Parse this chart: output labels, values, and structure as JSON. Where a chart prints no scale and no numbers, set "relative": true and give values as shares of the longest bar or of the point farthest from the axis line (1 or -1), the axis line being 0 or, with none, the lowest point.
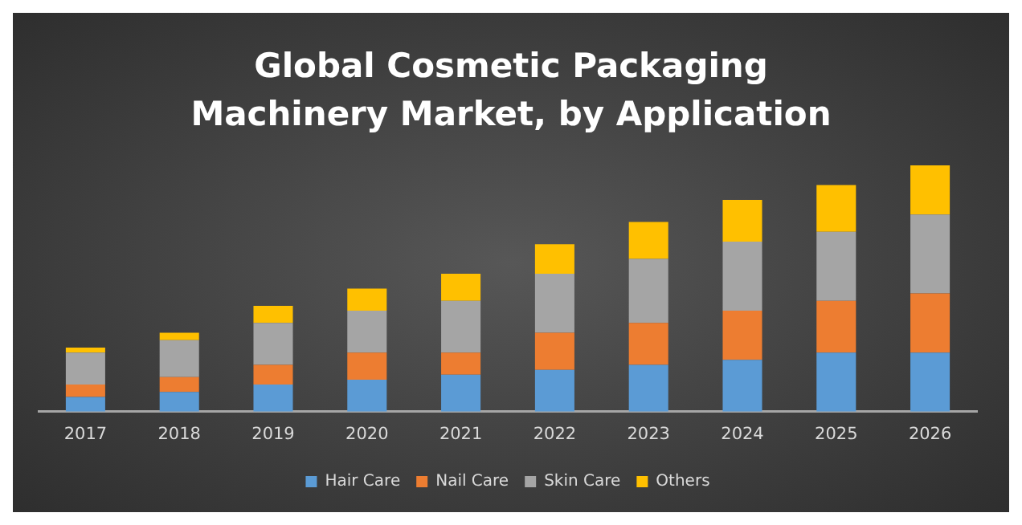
{
  "chart_data": {
    "type": "bar",
    "title": "Global Cosmetic Packaging Machinery Market, by Application",
    "relative": true,
    "stacked": true,
    "legend": "bottom",
    "grid": false,
    "categories": [
      "2017",
      "2018",
      "2019",
      "2020",
      "2021",
      "2022",
      "2023",
      "2024",
      "2025",
      "2026"
    ],
    "series": [
      {
        "name": "Hair Care",
        "color": "#5b9bd5",
        "values": [
          0.06,
          0.08,
          0.11,
          0.13,
          0.15,
          0.17,
          0.19,
          0.21,
          0.24,
          0.24
        ]
      },
      {
        "name": "Nail Care",
        "color": "#ed7d31",
        "values": [
          0.05,
          0.06,
          0.08,
          0.11,
          0.09,
          0.15,
          0.17,
          0.2,
          0.21,
          0.24
        ]
      },
      {
        "name": "Skin Care",
        "color": "#a5a5a5",
        "values": [
          0.13,
          0.15,
          0.17,
          0.17,
          0.21,
          0.24,
          0.26,
          0.28,
          0.28,
          0.32
        ]
      },
      {
        "name": "Others",
        "color": "#ffc000",
        "values": [
          0.02,
          0.03,
          0.07,
          0.09,
          0.11,
          0.12,
          0.15,
          0.17,
          0.19,
          0.2
        ]
      }
    ]
  }
}
